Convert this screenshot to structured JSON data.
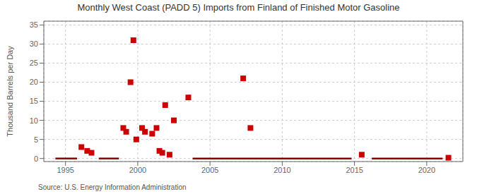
{
  "chart_data": {
    "type": "scatter",
    "title": "Monthly West Coast (PADD 5) Imports from Finland of Finished Motor Gasoline",
    "y_label": "Thousand Barrels per Day",
    "annotations": [
      "Source: U.S. Energy Information Administration"
    ],
    "xlim": [
      1993.5,
      2022.5
    ],
    "ylim": [
      -0.8,
      36
    ],
    "xticks": [
      1995,
      2000,
      2005,
      2010,
      2015,
      2020
    ],
    "yticks": [
      0,
      5,
      10,
      15,
      20,
      25,
      30,
      35
    ],
    "grid": true,
    "series": [
      {
        "type": "scatter",
        "color": "#cc0000",
        "marker": "square",
        "x": [
          1996.1,
          1996.5,
          1996.8,
          1999.0,
          1999.2,
          1999.5,
          1999.7,
          1999.9,
          2000.3,
          2000.5,
          2001.0,
          2001.3,
          2001.5,
          2001.7,
          2001.9,
          2002.2,
          2002.5,
          2003.5,
          2007.3,
          2007.8,
          2015.5,
          2021.5
        ],
        "values": [
          3.0,
          2.0,
          1.5,
          8.0,
          7.0,
          20.0,
          31.0,
          5.0,
          8.0,
          7.0,
          6.5,
          8.0,
          2.0,
          1.5,
          14.0,
          1.0,
          10.0,
          16.0,
          21.0,
          8.0,
          1.0,
          0.2
        ]
      },
      {
        "type": "line",
        "color": "#8b0000",
        "line_style": "solid",
        "x": [
          [
            1994.3,
            1995.8
          ],
          [
            1997.3,
            1998.7
          ],
          [
            2003.8,
            2014.8
          ],
          [
            2016.2,
            2021.1
          ]
        ],
        "values": [
          0,
          0,
          0,
          0
        ]
      }
    ]
  }
}
